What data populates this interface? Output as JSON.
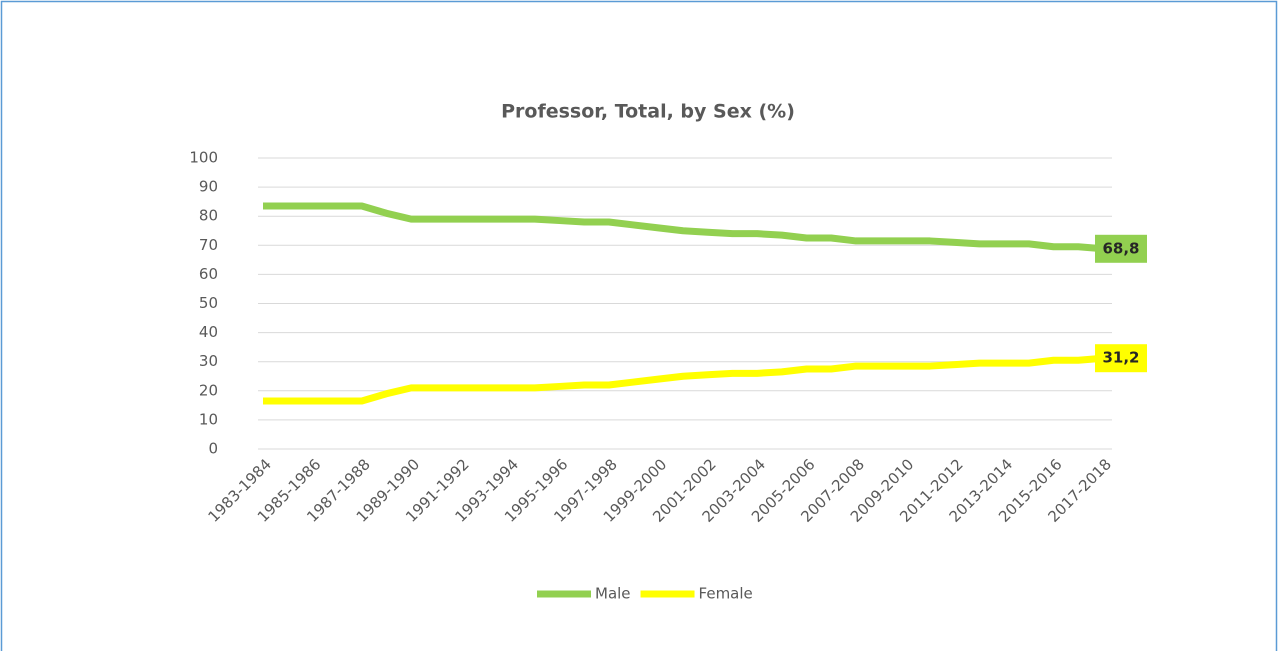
{
  "chart_data": {
    "type": "line",
    "title": "Professor, Total, by Sex (%)",
    "categories": [
      "1983-1984",
      null,
      "1985-1986",
      null,
      "1987-1988",
      null,
      "1989-1990",
      null,
      "1991-1992",
      null,
      "1993-1994",
      null,
      "1995-1996",
      null,
      "1997-1998",
      null,
      "1999-2000",
      null,
      "2001-2002",
      null,
      "2003-2004",
      null,
      "2005-2006",
      null,
      "2007-2008",
      null,
      "2009-2010",
      null,
      "2011-2012",
      null,
      "2013-2014",
      null,
      "2015-2016",
      null,
      "2017-2018"
    ],
    "series": [
      {
        "name": "Male",
        "color": "#92d050",
        "values": [
          83.5,
          83.5,
          83.5,
          83.5,
          83.5,
          81,
          79,
          79,
          79,
          79,
          79,
          79,
          78.5,
          78,
          78,
          77,
          76,
          75,
          74.5,
          74,
          74,
          73.5,
          72.5,
          72.5,
          71.5,
          71.5,
          71.5,
          71.5,
          71,
          70.5,
          70.5,
          70.5,
          69.5,
          69.5,
          68.8
        ],
        "value_labels": [
          null,
          null,
          null,
          null,
          null,
          null,
          null,
          null,
          null,
          null,
          null,
          null,
          null,
          null,
          null,
          null,
          null,
          null,
          null,
          null,
          null,
          null,
          null,
          null,
          null,
          null,
          null,
          null,
          null,
          null,
          null,
          null,
          null,
          null,
          "68,8"
        ]
      },
      {
        "name": "Female",
        "color": "#ffff00",
        "values": [
          16.5,
          16.5,
          16.5,
          16.5,
          16.5,
          19,
          21,
          21,
          21,
          21,
          21,
          21,
          21.5,
          22,
          22,
          23,
          24,
          25,
          25.5,
          26,
          26,
          26.5,
          27.5,
          27.5,
          28.5,
          28.5,
          28.5,
          28.5,
          29,
          29.5,
          29.5,
          29.5,
          30.5,
          30.5,
          31.2
        ],
        "value_labels": [
          null,
          null,
          null,
          null,
          null,
          null,
          null,
          null,
          null,
          null,
          null,
          null,
          null,
          null,
          null,
          null,
          null,
          null,
          null,
          null,
          null,
          null,
          null,
          null,
          null,
          null,
          null,
          null,
          null,
          null,
          null,
          null,
          null,
          null,
          "31,2"
        ]
      }
    ],
    "ylim": [
      0,
      100
    ],
    "yticks": [
      0,
      10,
      20,
      30,
      40,
      50,
      60,
      70,
      80,
      90,
      100
    ],
    "grid": true,
    "legend": "bottom"
  }
}
